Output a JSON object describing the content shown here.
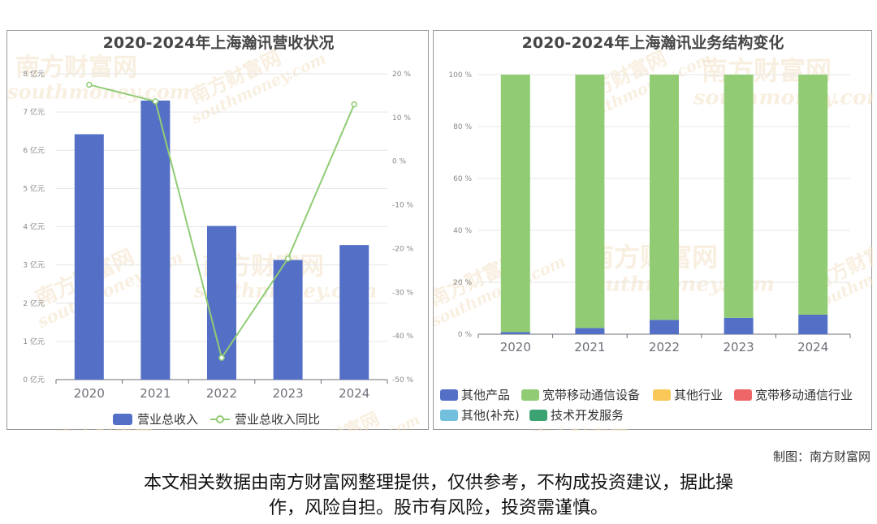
{
  "chart_data": [
    {
      "type": "bar",
      "title": "2020-2024年上海瀚讯营收状况",
      "categories": [
        "2020",
        "2021",
        "2022",
        "2023",
        "2024"
      ],
      "series": [
        {
          "name": "营业总收入",
          "type": "bar",
          "axis": "left",
          "values": [
            6.42,
            7.3,
            4.02,
            3.13,
            3.52
          ]
        },
        {
          "name": "营业总收入同比",
          "type": "line",
          "axis": "right",
          "values": [
            17.5,
            13.7,
            -45.0,
            -22.3,
            13.0
          ]
        }
      ],
      "left_axis": {
        "ticks": [
          "0 亿元",
          "1 亿元",
          "2 亿元",
          "3 亿元",
          "4 亿元",
          "5 亿元",
          "6 亿元",
          "7 亿元",
          "8 亿元"
        ],
        "range": [
          0,
          8
        ]
      },
      "right_axis": {
        "ticks": [
          "-50 %",
          "-40 %",
          "-30 %",
          "-20 %",
          "-10 %",
          "0 %",
          "10 %",
          "20 %"
        ],
        "range": [
          -50,
          20
        ]
      },
      "legend_position": "bottom",
      "colors": {
        "bar": "#5470c6",
        "line": "#91cc75"
      }
    },
    {
      "type": "bar",
      "stacked": true,
      "title": "2020-2024年上海瀚讯业务结构变化",
      "categories": [
        "2020",
        "2021",
        "2022",
        "2023",
        "2024"
      ],
      "series": [
        {
          "name": "其他产品",
          "values": [
            0.8,
            2.4,
            5.5,
            6.3,
            7.5
          ]
        },
        {
          "name": "宽带移动通信设备",
          "values": [
            99.2,
            97.6,
            94.5,
            93.7,
            92.5
          ]
        },
        {
          "name": "其他行业",
          "values": [
            0,
            0,
            0,
            0,
            0
          ]
        },
        {
          "name": "宽带移动通信行业",
          "values": [
            0,
            0,
            0,
            0,
            0
          ]
        },
        {
          "name": "其他(补充)",
          "values": [
            0,
            0,
            0,
            0,
            0
          ]
        },
        {
          "name": "技术开发服务",
          "values": [
            0,
            0,
            0,
            0,
            0
          ]
        }
      ],
      "y_axis": {
        "ticks": [
          "0 %",
          "20 %",
          "40 %",
          "60 %",
          "80 %",
          "100 %"
        ],
        "range": [
          0,
          100
        ]
      },
      "legend_position": "bottom",
      "colors": [
        "#5470c6",
        "#91cc75",
        "#fac858",
        "#ee6666",
        "#73c0de",
        "#3ba272"
      ]
    }
  ],
  "watermark": {
    "cn": "南方财富网",
    "en": "southmoney.com"
  },
  "credit": "制图：南方财富网",
  "disclaimer": {
    "line1": "本文相关数据由南方财富网整理提供，仅供参考，不构成投资建议，据此操",
    "line2": "作，风险自担。股市有风险，投资需谨慎。"
  }
}
